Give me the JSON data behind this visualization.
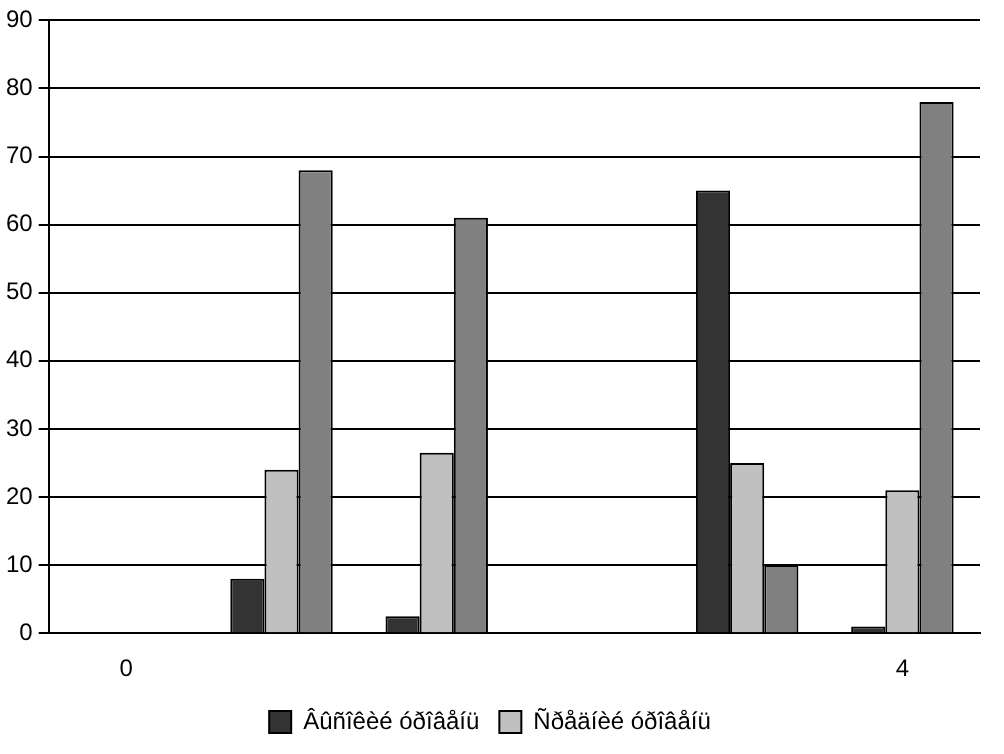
{
  "chart_data": {
    "type": "bar",
    "categories": [
      "0",
      null,
      null,
      null,
      null,
      "4"
    ],
    "series": [
      {
        "name": "Âûñîêèé óðîâåíü",
        "color": "#333333",
        "values": [
          null,
          8,
          2.5,
          null,
          65,
          1
        ]
      },
      {
        "name": "Ñðåäíèé óðîâåíü",
        "color": "#c0c0c0",
        "values": [
          null,
          24,
          26.5,
          null,
          25,
          21
        ]
      },
      {
        "color": "#808080",
        "values": [
          null,
          68,
          61,
          null,
          10,
          78
        ]
      }
    ],
    "ylim": [
      0,
      90
    ],
    "yticks": [
      0,
      10,
      20,
      30,
      40,
      50,
      60,
      70,
      80,
      90
    ],
    "grid": "y",
    "legend": "bottom"
  }
}
